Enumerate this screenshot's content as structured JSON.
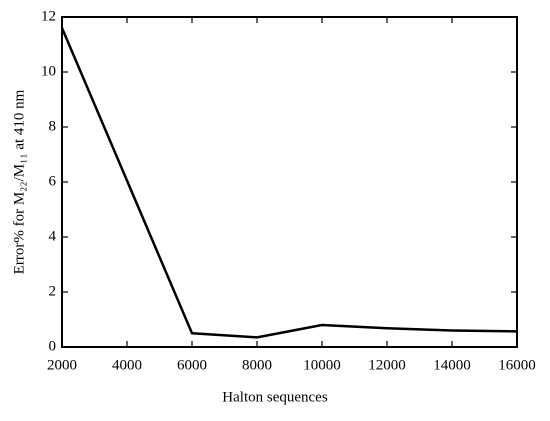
{
  "chart_data": {
    "type": "line",
    "x_label": "Halton sequences",
    "y_label": "Error% for M₂₂/M₁₁ at 410 nm",
    "x": [
      2000,
      6000,
      8000,
      10000,
      12000,
      14000,
      16000
    ],
    "series": [
      {
        "color": "#000000",
        "values": [
          11.6,
          0.5,
          0.35,
          0.8,
          0.68,
          0.6,
          0.57
        ]
      }
    ],
    "xlim": [
      2000,
      16000
    ],
    "xticks": [
      2000,
      4000,
      6000,
      8000,
      10000,
      12000,
      14000,
      16000
    ],
    "ylim": [
      0,
      12
    ],
    "yticks": [
      0,
      2,
      4,
      6,
      8,
      10,
      12
    ],
    "grid": false
  }
}
